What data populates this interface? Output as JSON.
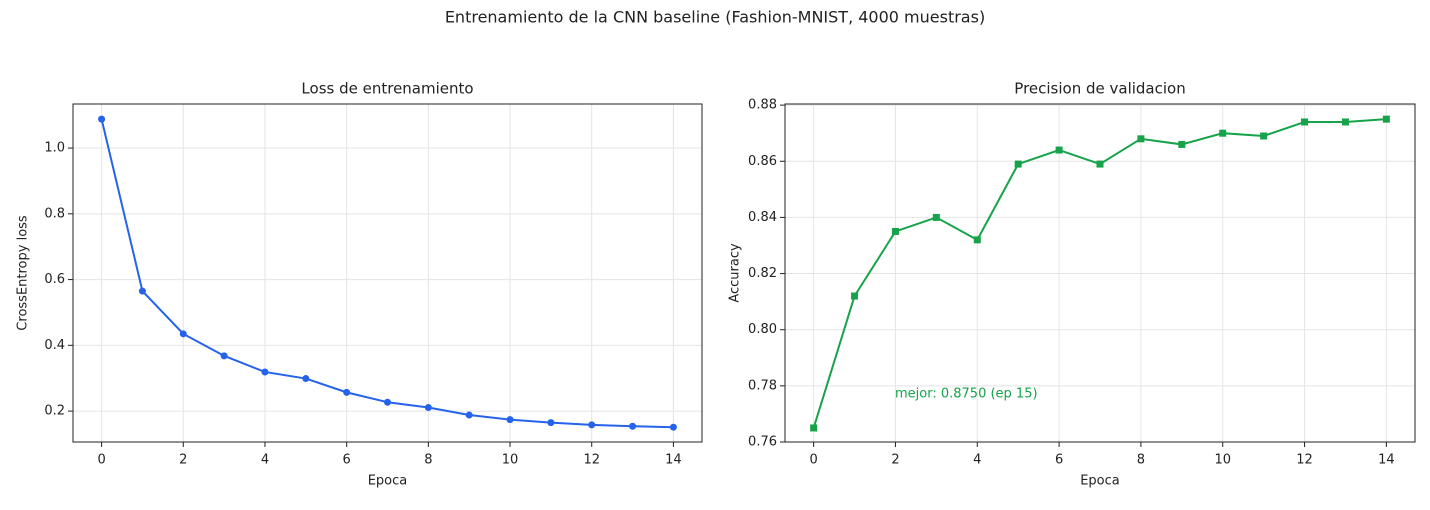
{
  "title": "Entrenamiento de la CNN baseline (Fashion-MNIST, 4000 muestras)",
  "chart_data": [
    {
      "type": "line",
      "title": "Loss de entrenamiento",
      "x_label": "Epoca",
      "y_label": "CrossEntropy loss",
      "x": [
        0,
        1,
        2,
        3,
        4,
        5,
        6,
        7,
        8,
        9,
        10,
        11,
        12,
        13,
        14
      ],
      "values": [
        1.088,
        0.565,
        0.435,
        0.368,
        0.319,
        0.299,
        0.257,
        0.227,
        0.211,
        0.188,
        0.174,
        0.165,
        0.158,
        0.154,
        0.151
      ],
      "color": "#2563eb",
      "marker": "circle",
      "xlim": [
        -0.7,
        14.7
      ],
      "xticks": [
        0,
        2,
        4,
        6,
        8,
        10,
        12,
        14
      ],
      "ylim": [
        0.106,
        1.134
      ],
      "yticks": [
        0.2,
        0.4,
        0.6,
        0.8,
        {
          "value": 1,
          "label": "1.0"
        }
      ],
      "grid": true
    },
    {
      "type": "line",
      "title": "Precision de validacion",
      "x_label": "Epoca",
      "y_label": "Accuracy",
      "x": [
        0,
        1,
        2,
        3,
        4,
        5,
        6,
        7,
        8,
        9,
        10,
        11,
        12,
        13,
        14
      ],
      "values": [
        0.765,
        0.812,
        0.835,
        0.84,
        0.832,
        0.859,
        0.864,
        0.859,
        0.868,
        0.866,
        0.87,
        0.869,
        0.874,
        0.874,
        0.875
      ],
      "color": "#16a34a",
      "marker": "square",
      "xlim": [
        -0.7,
        14.7
      ],
      "xticks": [
        0,
        2,
        4,
        6,
        8,
        10,
        12,
        14
      ],
      "ylim": [
        0.76,
        0.8804
      ],
      "yticks": [
        0.76,
        0.78,
        {
          "value": 0.8,
          "label": "0.80"
        },
        0.82,
        0.84,
        0.86,
        0.88
      ],
      "grid": true,
      "annotation": "mejor: 0.8750 (ep 15)"
    }
  ]
}
